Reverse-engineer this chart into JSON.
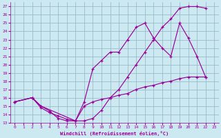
{
  "xlabel": "Windchill (Refroidissement éolien,°C)",
  "bg_color": "#cce8f0",
  "grid_color": "#99bbcc",
  "line_color": "#990099",
  "xlim": [
    -0.5,
    23.5
  ],
  "ylim": [
    13,
    27.5
  ],
  "xticks": [
    0,
    1,
    2,
    3,
    4,
    5,
    6,
    7,
    8,
    9,
    10,
    11,
    12,
    13,
    14,
    15,
    16,
    17,
    18,
    19,
    20,
    21,
    22,
    23
  ],
  "yticks": [
    13,
    14,
    15,
    16,
    17,
    18,
    19,
    20,
    21,
    22,
    23,
    24,
    25,
    26,
    27
  ],
  "line1_x": [
    0,
    2,
    3,
    4,
    5,
    6,
    7,
    8,
    9,
    10,
    11,
    12,
    13,
    14,
    15,
    16,
    17,
    18,
    19,
    20,
    21,
    22
  ],
  "line1_y": [
    15.5,
    16.0,
    15.0,
    14.4,
    13.5,
    13.2,
    13.2,
    13.2,
    13.5,
    14.5,
    16.0,
    17.0,
    18.5,
    20.0,
    21.5,
    23.0,
    24.5,
    25.5,
    26.8,
    27.0,
    27.0,
    26.8
  ],
  "line2_x": [
    0,
    2,
    3,
    7,
    8,
    9,
    10,
    11,
    12,
    13,
    14,
    15,
    16,
    17,
    18,
    19,
    20,
    21,
    22
  ],
  "line2_y": [
    15.5,
    16.0,
    15.0,
    13.2,
    15.5,
    19.5,
    20.5,
    21.5,
    21.5,
    23.0,
    24.5,
    25.0,
    23.2,
    22.0,
    21.0,
    25.0,
    23.2,
    21.0,
    18.5
  ],
  "line3_x": [
    0,
    2,
    3,
    4,
    5,
    6,
    7,
    8,
    9,
    10,
    11,
    12,
    13,
    14,
    15,
    16,
    17,
    18,
    19,
    20,
    21,
    22
  ],
  "line3_y": [
    15.5,
    16.0,
    14.8,
    14.2,
    13.8,
    13.4,
    13.2,
    15.0,
    15.5,
    15.8,
    16.0,
    16.3,
    16.5,
    17.0,
    17.3,
    17.5,
    17.8,
    18.0,
    18.3,
    18.5,
    18.5,
    18.5
  ]
}
